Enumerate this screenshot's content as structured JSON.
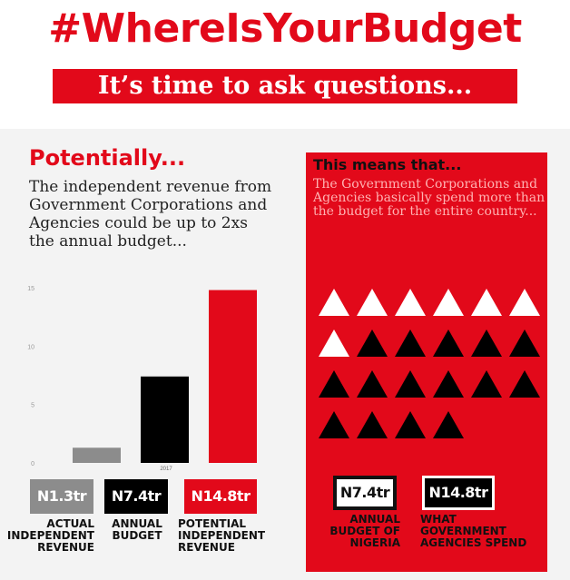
{
  "header": {
    "hashtag": "#WhereIsYourBudget",
    "subtitle": "It’s time to ask questions..."
  },
  "left": {
    "heading": "Potentially...",
    "body": "The independent revenue from Government Corporations and Agencies could be up to 2xs the annual budget..."
  },
  "right": {
    "heading": "This means that...",
    "body": "The Government Corporations and Agencies basically spend more than the budget for the entire country...",
    "triangles": {
      "total": 22,
      "white": 7,
      "per_row": 6
    },
    "boxes": [
      {
        "value": "N7.4tr",
        "label": "ANNUAL BUDGET OF NIGERIA"
      },
      {
        "value": "N14.8tr",
        "label": "WHAT GOVERNMENT AGENCIES SPEND"
      }
    ]
  },
  "chart_data": {
    "type": "bar",
    "categories": [
      "ACTUAL INDEPENDENT REVENUE",
      "ANNUAL BUDGET",
      "POTENTIAL INDEPENDENT REVENUE"
    ],
    "values": [
      1.3,
      7.4,
      14.8
    ],
    "value_labels": [
      "N1.3tr",
      "N7.4tr",
      "N14.8tr"
    ],
    "colors": [
      "#8c8c8c",
      "#000000",
      "#e2091a"
    ],
    "x_tick": "2017",
    "yticks": [
      "0",
      "5",
      "10",
      "15"
    ],
    "ylim": [
      0,
      15
    ],
    "grid": false,
    "legend": "none"
  }
}
